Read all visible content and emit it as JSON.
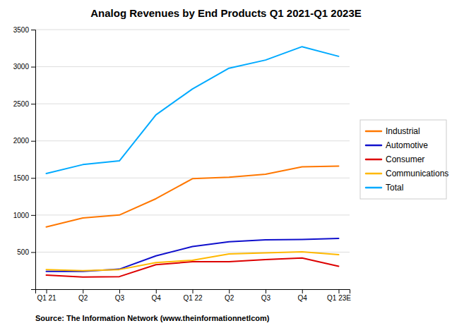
{
  "chart_data": {
    "type": "line",
    "title": "Analog Revenues by End Products Q1 2021-Q1 2023E",
    "annotations": [
      "Source: The Information Network (www.theinformationnetlcom)"
    ],
    "categories": [
      "Q1 21",
      "Q2",
      "Q3",
      "Q4",
      "Q1 22",
      "Q2",
      "Q3",
      "Q4",
      "Q1 23E"
    ],
    "series": [
      {
        "name": "Industrial",
        "color": "#FF7700",
        "values": [
          840,
          960,
          1000,
          1220,
          1490,
          1510,
          1550,
          1650,
          1660
        ]
      },
      {
        "name": "Automotive",
        "color": "#1010CC",
        "values": [
          240,
          240,
          270,
          450,
          575,
          640,
          665,
          670,
          685
        ]
      },
      {
        "name": "Consumer",
        "color": "#DD0000",
        "values": [
          190,
          165,
          170,
          330,
          370,
          370,
          400,
          420,
          310
        ]
      },
      {
        "name": "Communications",
        "color": "#FFB800",
        "values": [
          265,
          250,
          265,
          360,
          390,
          475,
          490,
          505,
          465
        ]
      },
      {
        "name": "Total",
        "color": "#00AAFF",
        "values": [
          1560,
          1680,
          1730,
          2350,
          2700,
          2980,
          3090,
          3270,
          3140
        ]
      }
    ],
    "ylim": [
      0,
      3500
    ],
    "yticks": [
      500,
      1000,
      1500,
      2000,
      2500,
      3000,
      3500
    ],
    "grid": true,
    "legend": "right"
  }
}
